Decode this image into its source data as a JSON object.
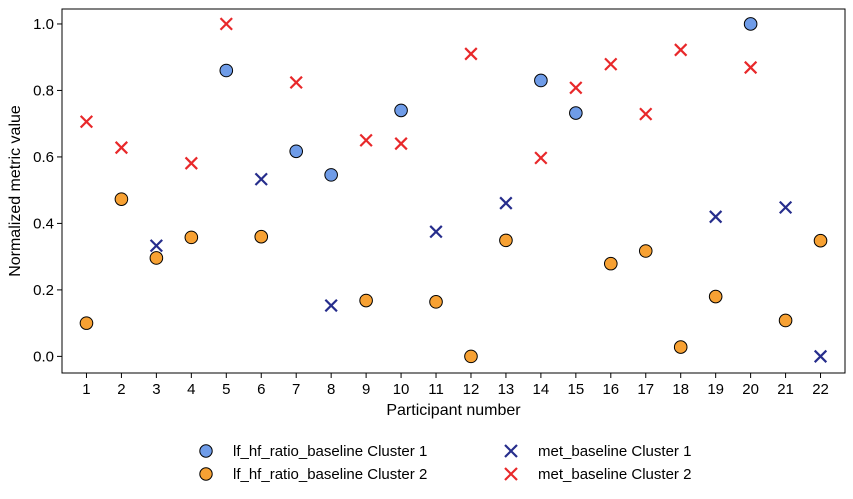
{
  "chart_data": {
    "type": "scatter",
    "xlabel": "Participant number",
    "ylabel": "Normalized metric value",
    "x": [
      1,
      2,
      3,
      4,
      5,
      6,
      7,
      8,
      9,
      10,
      11,
      12,
      13,
      14,
      15,
      16,
      17,
      18,
      19,
      20,
      21,
      22
    ],
    "xlim": [
      0.3,
      22.7
    ],
    "ylim": [
      -0.05,
      1.045
    ],
    "yticks": [
      "0.0",
      "0.2",
      "0.4",
      "0.6",
      "0.8",
      "1.0"
    ],
    "xticks": [
      "1",
      "2",
      "3",
      "4",
      "5",
      "6",
      "7",
      "8",
      "9",
      "10",
      "11",
      "12",
      "13",
      "14",
      "15",
      "16",
      "17",
      "18",
      "19",
      "20",
      "21",
      "22"
    ],
    "grid": false,
    "legend_placement": "bottom-center",
    "series": [
      {
        "name": "lf_hf_ratio_baseline Cluster 1",
        "marker": "circle",
        "color": "#6f9ce8",
        "points": [
          [
            5,
            0.86
          ],
          [
            7,
            0.617
          ],
          [
            8,
            0.546
          ],
          [
            10,
            0.74
          ],
          [
            14,
            0.83
          ],
          [
            15,
            0.732
          ],
          [
            20,
            1.0
          ]
        ]
      },
      {
        "name": "lf_hf_ratio_baseline Cluster 2",
        "marker": "circle",
        "color": "#f7a133",
        "points": [
          [
            1,
            0.1
          ],
          [
            2,
            0.473
          ],
          [
            3,
            0.296
          ],
          [
            4,
            0.358
          ],
          [
            6,
            0.36
          ],
          [
            9,
            0.168
          ],
          [
            11,
            0.164
          ],
          [
            12,
            0.0
          ],
          [
            13,
            0.349
          ],
          [
            16,
            0.279
          ],
          [
            17,
            0.317
          ],
          [
            18,
            0.028
          ],
          [
            19,
            0.18
          ],
          [
            21,
            0.108
          ],
          [
            22,
            0.348
          ]
        ]
      },
      {
        "name": "met_baseline Cluster 1",
        "marker": "x",
        "color": "#262d8c",
        "points": [
          [
            3,
            0.333
          ],
          [
            6,
            0.533
          ],
          [
            8,
            0.153
          ],
          [
            11,
            0.375
          ],
          [
            13,
            0.461
          ],
          [
            19,
            0.42
          ],
          [
            21,
            0.448
          ],
          [
            22,
            0.0
          ]
        ]
      },
      {
        "name": "met_baseline Cluster 2",
        "marker": "x",
        "color": "#e8282a",
        "points": [
          [
            1,
            0.706
          ],
          [
            2,
            0.628
          ],
          [
            4,
            0.581
          ],
          [
            5,
            1.0
          ],
          [
            7,
            0.824
          ],
          [
            9,
            0.65
          ],
          [
            10,
            0.64
          ],
          [
            12,
            0.91
          ],
          [
            14,
            0.597
          ],
          [
            15,
            0.808
          ],
          [
            16,
            0.879
          ],
          [
            17,
            0.729
          ],
          [
            18,
            0.922
          ],
          [
            20,
            0.869
          ]
        ]
      }
    ]
  }
}
